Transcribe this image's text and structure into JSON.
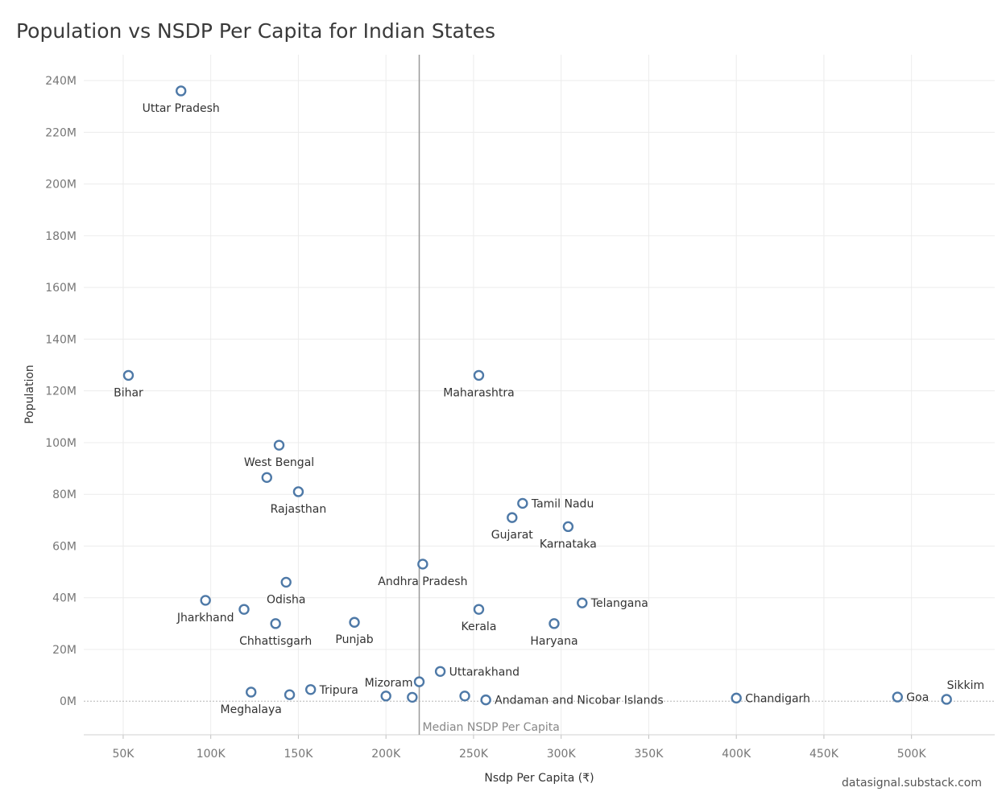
{
  "chart_data": {
    "type": "scatter",
    "title": "Population vs NSDP Per Capita for Indian States",
    "xlabel": "Nsdp Per Capita (₹)",
    "ylabel": "Population",
    "xlim": [
      27500,
      547500
    ],
    "ylim": [
      -13000000,
      250000000
    ],
    "x_ticks": [
      {
        "value": 50000,
        "label": "50K"
      },
      {
        "value": 100000,
        "label": "100K"
      },
      {
        "value": 150000,
        "label": "150K"
      },
      {
        "value": 200000,
        "label": "200K"
      },
      {
        "value": 250000,
        "label": "250K"
      },
      {
        "value": 300000,
        "label": "300K"
      },
      {
        "value": 350000,
        "label": "350K"
      },
      {
        "value": 400000,
        "label": "400K"
      },
      {
        "value": 450000,
        "label": "450K"
      },
      {
        "value": 500000,
        "label": "500K"
      }
    ],
    "y_ticks": [
      {
        "value": 0,
        "label": "0M"
      },
      {
        "value": 20000000,
        "label": "20M"
      },
      {
        "value": 40000000,
        "label": "40M"
      },
      {
        "value": 60000000,
        "label": "60M"
      },
      {
        "value": 80000000,
        "label": "80M"
      },
      {
        "value": 100000000,
        "label": "100M"
      },
      {
        "value": 120000000,
        "label": "120M"
      },
      {
        "value": 140000000,
        "label": "140M"
      },
      {
        "value": 160000000,
        "label": "160M"
      },
      {
        "value": 180000000,
        "label": "180M"
      },
      {
        "value": 200000000,
        "label": "200M"
      },
      {
        "value": 220000000,
        "label": "220M"
      },
      {
        "value": 240000000,
        "label": "240M"
      }
    ],
    "grid": true,
    "reference_line": {
      "x": 219000,
      "label": "Median NSDP Per Capita",
      "color": "#9a9a9a"
    },
    "marker_color": "#4e79a7",
    "points": [
      {
        "name": "Uttar Pradesh",
        "x": 83000,
        "y": 236000000,
        "pos": "below"
      },
      {
        "name": "Bihar",
        "x": 53000,
        "y": 126000000,
        "pos": "below"
      },
      {
        "name": "Maharashtra",
        "x": 253000,
        "y": 126000000,
        "pos": "below"
      },
      {
        "name": "West Bengal",
        "x": 139000,
        "y": 99000000,
        "pos": "below"
      },
      {
        "name": "",
        "x": 132000,
        "y": 86500000,
        "pos": "none"
      },
      {
        "name": "Rajasthan",
        "x": 150000,
        "y": 81000000,
        "pos": "below"
      },
      {
        "name": "Tamil Nadu",
        "x": 278000,
        "y": 76500000,
        "pos": "right"
      },
      {
        "name": "Gujarat",
        "x": 272000,
        "y": 71000000,
        "pos": "below"
      },
      {
        "name": "Karnataka",
        "x": 304000,
        "y": 67500000,
        "pos": "below"
      },
      {
        "name": "Andhra Pradesh",
        "x": 221000,
        "y": 53000000,
        "pos": "below"
      },
      {
        "name": "Odisha",
        "x": 143000,
        "y": 46000000,
        "pos": "below"
      },
      {
        "name": "Jharkhand",
        "x": 97000,
        "y": 39000000,
        "pos": "below"
      },
      {
        "name": "",
        "x": 119000,
        "y": 35500000,
        "pos": "none"
      },
      {
        "name": "Telangana",
        "x": 312000,
        "y": 38000000,
        "pos": "right"
      },
      {
        "name": "Kerala",
        "x": 253000,
        "y": 35500000,
        "pos": "below"
      },
      {
        "name": "Punjab",
        "x": 182000,
        "y": 30500000,
        "pos": "below"
      },
      {
        "name": "Chhattisgarh",
        "x": 137000,
        "y": 30000000,
        "pos": "below"
      },
      {
        "name": "Haryana",
        "x": 296000,
        "y": 30000000,
        "pos": "below"
      },
      {
        "name": "Uttarakhand",
        "x": 231000,
        "y": 11500000,
        "pos": "right"
      },
      {
        "name": "Mizoram",
        "x": 219000,
        "y": 7500000,
        "pos": "left"
      },
      {
        "name": "Tripura",
        "x": 157000,
        "y": 4500000,
        "pos": "right"
      },
      {
        "name": "Meghalaya",
        "x": 123000,
        "y": 3500000,
        "pos": "below"
      },
      {
        "name": "",
        "x": 145000,
        "y": 2500000,
        "pos": "none"
      },
      {
        "name": "",
        "x": 200000,
        "y": 2000000,
        "pos": "none"
      },
      {
        "name": "",
        "x": 215000,
        "y": 1500000,
        "pos": "none"
      },
      {
        "name": "",
        "x": 245000,
        "y": 2000000,
        "pos": "none"
      },
      {
        "name": "Andaman and Nicobar Islands",
        "x": 257000,
        "y": 500000,
        "pos": "right"
      },
      {
        "name": "Chandigarh",
        "x": 400000,
        "y": 1200000,
        "pos": "right"
      },
      {
        "name": "Goa",
        "x": 492000,
        "y": 1600000,
        "pos": "right"
      },
      {
        "name": "Sikkim",
        "x": 520000,
        "y": 700000,
        "pos": "above-right"
      }
    ]
  },
  "credit": "datasignal.substack.com"
}
